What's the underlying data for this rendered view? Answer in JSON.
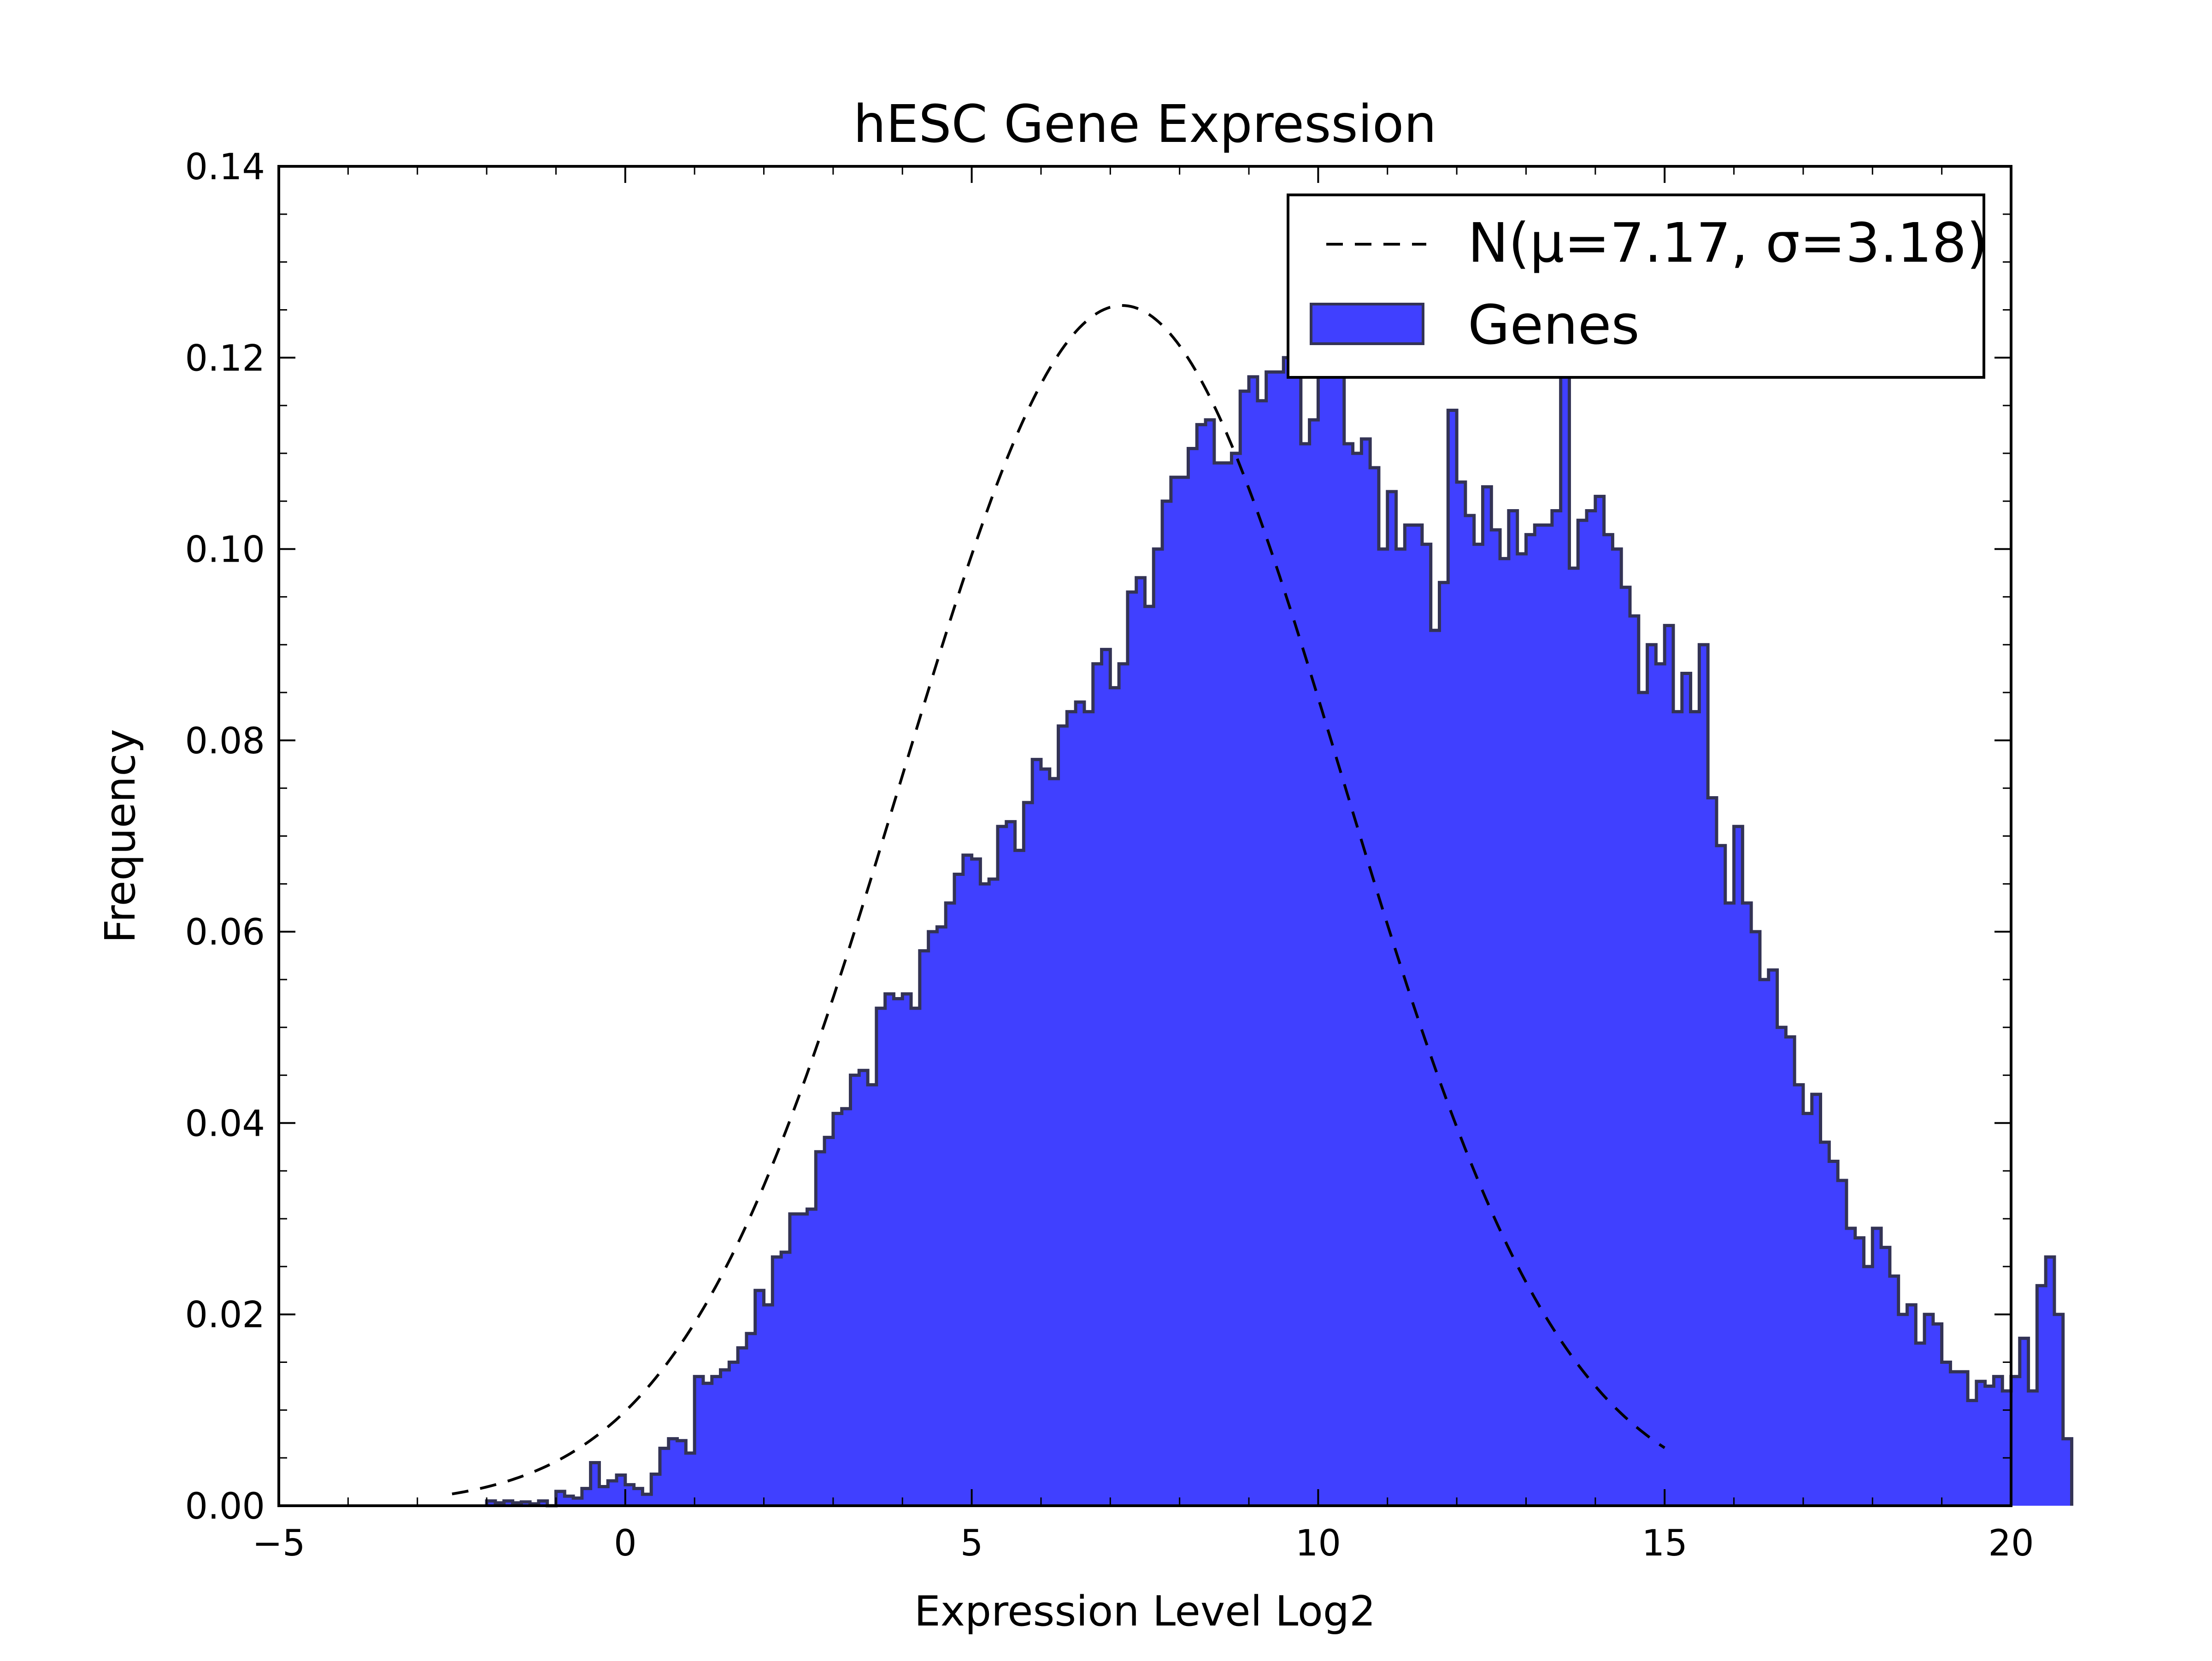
{
  "chart_data": {
    "type": "histogram",
    "title": "hESC Gene Expression",
    "xlabel": "Expression Level Log2",
    "ylabel": "Frequency",
    "xlim": [
      -5,
      20
    ],
    "ylim": [
      0,
      0.14
    ],
    "x_ticks": [
      -5,
      0,
      5,
      10,
      15,
      20
    ],
    "x_tick_labels": [
      "−5",
      "0",
      "5",
      "10",
      "15",
      "20"
    ],
    "y_ticks": [
      0,
      0.02,
      0.04,
      0.06,
      0.08,
      0.1,
      0.12,
      0.14
    ],
    "y_tick_labels": [
      "0.00",
      "0.02",
      "0.04",
      "0.06",
      "0.08",
      "0.10",
      "0.12",
      "0.14"
    ],
    "grid": false,
    "legend_position": "top-right",
    "series": [
      {
        "name": "Genes",
        "kind": "step-filled histogram",
        "color": "#4040ff",
        "edge_color": "#333355",
        "bin_width": 0.125,
        "x_start": -2.0,
        "values": [
          0.0005,
          0.0003,
          0.0005,
          0.0003,
          0.0004,
          0.0002,
          0.0005,
          0.0,
          0.0015,
          0.001,
          0.0008,
          0.0018,
          0.0045,
          0.002,
          0.0026,
          0.0032,
          0.0022,
          0.0018,
          0.0012,
          0.0033,
          0.006,
          0.007,
          0.0068,
          0.0055,
          0.0135,
          0.0128,
          0.0135,
          0.0142,
          0.015,
          0.0165,
          0.018,
          0.0225,
          0.021,
          0.026,
          0.0265,
          0.0305,
          0.0305,
          0.031,
          0.037,
          0.0385,
          0.041,
          0.0415,
          0.045,
          0.0455,
          0.044,
          0.052,
          0.0535,
          0.053,
          0.0535,
          0.052,
          0.058,
          0.06,
          0.0605,
          0.063,
          0.066,
          0.068,
          0.0676,
          0.065,
          0.0655,
          0.071,
          0.0715,
          0.0685,
          0.0735,
          0.078,
          0.077,
          0.076,
          0.0815,
          0.083,
          0.084,
          0.083,
          0.088,
          0.0895,
          0.0855,
          0.088,
          0.0955,
          0.097,
          0.094,
          0.1,
          0.105,
          0.1075,
          0.1075,
          0.1105,
          0.113,
          0.1135,
          0.109,
          0.109,
          0.11,
          0.1165,
          0.118,
          0.1155,
          0.1185,
          0.1185,
          0.12,
          0.119,
          0.111,
          0.1135,
          0.12,
          0.122,
          0.122,
          0.111,
          0.11,
          0.1115,
          0.1085,
          0.1,
          0.106,
          0.1,
          0.1025,
          0.1025,
          0.1005,
          0.0915,
          0.0965,
          0.1145,
          0.107,
          0.1035,
          0.1005,
          0.1065,
          0.102,
          0.099,
          0.104,
          0.0995,
          0.1015,
          0.1025,
          0.1025,
          0.104,
          0.12,
          0.098,
          0.103,
          0.104,
          0.1055,
          0.1015,
          0.1,
          0.096,
          0.093,
          0.085,
          0.09,
          0.088,
          0.092,
          0.083,
          0.087,
          0.083,
          0.09,
          0.074,
          0.069,
          0.063,
          0.071,
          0.063,
          0.06,
          0.055,
          0.056,
          0.05,
          0.049,
          0.044,
          0.041,
          0.043,
          0.038,
          0.036,
          0.034,
          0.029,
          0.028,
          0.025,
          0.029,
          0.027,
          0.024,
          0.02,
          0.021,
          0.017,
          0.02,
          0.019,
          0.015,
          0.014,
          0.014,
          0.011,
          0.013,
          0.0125,
          0.0135,
          0.012,
          0.0135,
          0.0175,
          0.012,
          0.023,
          0.026,
          0.02,
          0.007
        ]
      },
      {
        "name": "N(μ=7.17, σ=3.18)",
        "kind": "line",
        "style": "dashed",
        "color": "#000000",
        "x_range": [
          -2.5,
          15.0
        ],
        "mu": 7.17,
        "sigma": 3.18
      }
    ],
    "legend": {
      "entries": [
        {
          "label": "N(μ=7.17, σ=3.18)",
          "symbol": "dashed-line"
        },
        {
          "label": "Genes",
          "symbol": "patch"
        }
      ]
    }
  }
}
